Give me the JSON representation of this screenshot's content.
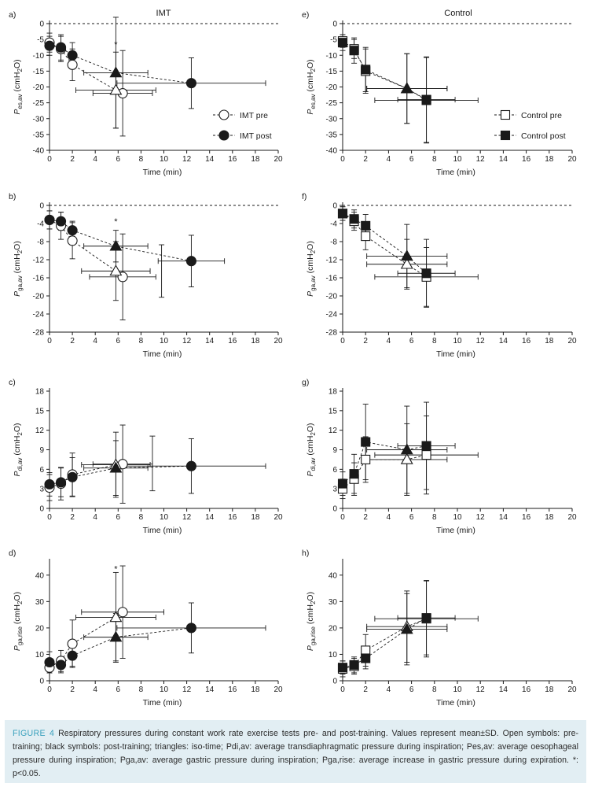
{
  "columns": {
    "left_title": "IMT",
    "right_title": "Control"
  },
  "legends": {
    "imt": [
      {
        "label": "IMT pre",
        "marker": "circle",
        "filled": false
      },
      {
        "label": "IMT post",
        "marker": "circle",
        "filled": true
      }
    ],
    "control": [
      {
        "label": "Control pre",
        "marker": "square",
        "filled": false
      },
      {
        "label": "Control post",
        "marker": "square",
        "filled": true
      }
    ]
  },
  "colors": {
    "ink": "#1a1a1a",
    "caption_bg": "#e2eef3",
    "caption_label": "#3aa1bd"
  },
  "caption": {
    "label": "FIGURE 4",
    "text": "Respiratory pressures during constant work rate exercise tests pre- and post-training. Values represent mean±SD. Open symbols: pre-training; black symbols: post-training; triangles: iso-time; Pdi,av: average transdiaphragmatic pressure during inspiration; Pes,av: average oesophageal pressure during inspiration; Pga,av: average gastric pressure during inspiration; Pga,rise: average increase in gastric pressure during expiration. *: p<0.05."
  },
  "chart_data": [
    {
      "panel": "a)",
      "type": "scatter",
      "group": "IMT",
      "xlabel": "Time (min)",
      "ylabel": "Pes,av (cmH2O)",
      "xlim": [
        0,
        20
      ],
      "ylim": [
        -40,
        0
      ],
      "xticks": [
        0,
        2,
        4,
        6,
        8,
        10,
        12,
        14,
        16,
        18,
        20
      ],
      "yticks": [
        0,
        -5,
        -10,
        -15,
        -20,
        -25,
        -30,
        -35,
        -40
      ],
      "zero_line": true,
      "series": [
        {
          "name": "IMT pre",
          "marker": "circle",
          "filled": false,
          "points": [
            {
              "x": 0,
              "y": -6,
              "yerr": 3
            },
            {
              "x": 1,
              "y": -8,
              "yerr": 4
            },
            {
              "x": 2,
              "y": -13,
              "yerr": 5
            },
            {
              "x": 6.4,
              "y": -22,
              "yerr": 13.5,
              "xerr": 2.6
            }
          ]
        },
        {
          "name": "IMT post",
          "marker": "circle",
          "filled": true,
          "points": [
            {
              "x": 0,
              "y": -7,
              "yerr": 3
            },
            {
              "x": 1,
              "y": -7.5,
              "yerr": 4
            },
            {
              "x": 2,
              "y": -10,
              "yerr": 4
            },
            {
              "x": 12.4,
              "y": -18.8,
              "yerr": 8,
              "xerr": 6.5
            }
          ]
        },
        {
          "name": "iso-time pre",
          "marker": "triangle",
          "filled": false,
          "points": [
            {
              "x": 5.8,
              "y": -21,
              "yerr": 12,
              "xerr": 3.5
            }
          ]
        },
        {
          "name": "iso-time post",
          "marker": "triangle",
          "filled": true,
          "points": [
            {
              "x": 5.8,
              "y": -15.5,
              "yerr": 17.5,
              "xerr": 2.8
            }
          ]
        }
      ],
      "annotations": [
        {
          "text": "*",
          "x": 5.8,
          "y": -6.5
        }
      ]
    },
    {
      "panel": "b)",
      "type": "scatter",
      "group": "IMT",
      "xlabel": "Time (min)",
      "ylabel": "Pga,av (cmH2O)",
      "xlim": [
        0,
        20
      ],
      "ylim": [
        -28,
        0
      ],
      "xticks": [
        0,
        2,
        4,
        6,
        8,
        10,
        12,
        14,
        16,
        18,
        20
      ],
      "yticks": [
        0,
        -4,
        -8,
        -12,
        -16,
        -20,
        -24,
        -28
      ],
      "zero_line": true,
      "series": [
        {
          "name": "IMT pre",
          "marker": "circle",
          "filled": false,
          "points": [
            {
              "x": 0,
              "y": -3.2,
              "yerr": 2
            },
            {
              "x": 1,
              "y": -4.5,
              "yerr": 3
            },
            {
              "x": 2,
              "y": -7.8,
              "yerr": 4
            },
            {
              "x": 6.4,
              "y": -15.8,
              "yerr": 9.5,
              "xerr": 2.9
            }
          ]
        },
        {
          "name": "IMT post",
          "marker": "circle",
          "filled": true,
          "points": [
            {
              "x": 0,
              "y": -3.2,
              "yerr": 2
            },
            {
              "x": 1,
              "y": -3.5,
              "yerr": 2
            },
            {
              "x": 2,
              "y": -5.5,
              "yerr": 2
            },
            {
              "x": 12.4,
              "y": -12.3,
              "yerr": 5.7,
              "xerr": 2.9
            }
          ]
        },
        {
          "name": "iso-time pre",
          "marker": "triangle",
          "filled": false,
          "points": [
            {
              "x": 5.8,
              "y": -14.5,
              "yerr": 6.5,
              "xerr": 3.0
            }
          ]
        },
        {
          "name": "iso-time post",
          "marker": "triangle",
          "filled": true,
          "points": [
            {
              "x": 5.8,
              "y": -9,
              "yerr": 3.5,
              "xerr": 2.8
            }
          ]
        }
      ],
      "annotations": [
        {
          "text": "*",
          "x": 5.8,
          "y": -3.5
        }
      ],
      "extra_errorbars": [
        {
          "x": 9.8,
          "y": -14.5,
          "yerr": 5.8
        }
      ]
    },
    {
      "panel": "c)",
      "type": "scatter",
      "group": "IMT",
      "xlabel": "Time (min)",
      "ylabel": "Pdi,av (cmH2O)",
      "xlim": [
        0,
        20
      ],
      "ylim": [
        0,
        18
      ],
      "xticks": [
        0,
        2,
        4,
        6,
        8,
        10,
        12,
        14,
        16,
        18,
        20
      ],
      "yticks": [
        0,
        3,
        6,
        9,
        12,
        15,
        18
      ],
      "zero_line": false,
      "series": [
        {
          "name": "IMT pre",
          "marker": "circle",
          "filled": false,
          "points": [
            {
              "x": 0,
              "y": 3.2,
              "yerr": 2
            },
            {
              "x": 1,
              "y": 3.8,
              "yerr": 2.5
            },
            {
              "x": 2,
              "y": 5.2,
              "yerr": 3.3
            },
            {
              "x": 6.4,
              "y": 6.8,
              "yerr": 6,
              "xerr": 2.6
            }
          ]
        },
        {
          "name": "IMT post",
          "marker": "circle",
          "filled": true,
          "points": [
            {
              "x": 0,
              "y": 3.7,
              "yerr": 1.8
            },
            {
              "x": 1,
              "y": 4.0,
              "yerr": 2.2
            },
            {
              "x": 2,
              "y": 4.8,
              "yerr": 3
            },
            {
              "x": 12.4,
              "y": 6.5,
              "yerr": 4.2,
              "xerr": 6.5
            }
          ]
        },
        {
          "name": "iso-time pre",
          "marker": "triangle",
          "filled": false,
          "points": [
            {
              "x": 5.8,
              "y": 6.7,
              "yerr": 5,
              "xerr": 3.0
            }
          ]
        },
        {
          "name": "iso-time post",
          "marker": "triangle",
          "filled": true,
          "points": [
            {
              "x": 5.8,
              "y": 6.2,
              "yerr": 4.2,
              "xerr": 2.8
            }
          ]
        }
      ],
      "annotations": [],
      "extra_errorbars": [
        {
          "x": 9.0,
          "y": 6.9,
          "yerr": 4.2
        }
      ]
    },
    {
      "panel": "d)",
      "type": "scatter",
      "group": "IMT",
      "xlabel": "Time (min)",
      "ylabel": "Pga,rise (cmH2O)",
      "xlim": [
        0,
        20
      ],
      "ylim": [
        0,
        45
      ],
      "xticks": [
        0,
        2,
        4,
        6,
        8,
        10,
        12,
        14,
        16,
        18,
        20
      ],
      "yticks": [
        0,
        10,
        20,
        30,
        40
      ],
      "zero_line": false,
      "series": [
        {
          "name": "IMT pre",
          "marker": "circle",
          "filled": false,
          "points": [
            {
              "x": 0,
              "y": 5,
              "yerr": 2
            },
            {
              "x": 1,
              "y": 7.5,
              "yerr": 4
            },
            {
              "x": 2,
              "y": 14,
              "yerr": 9
            },
            {
              "x": 6.4,
              "y": 26,
              "yerr": 17.5,
              "xerr": 3.6
            }
          ]
        },
        {
          "name": "IMT post",
          "marker": "circle",
          "filled": true,
          "points": [
            {
              "x": 0,
              "y": 7,
              "yerr": 4
            },
            {
              "x": 1,
              "y": 6,
              "yerr": 3
            },
            {
              "x": 2,
              "y": 9.5,
              "yerr": 4
            },
            {
              "x": 12.4,
              "y": 20,
              "yerr": 9.5,
              "xerr": 6.5
            }
          ]
        },
        {
          "name": "iso-time pre",
          "marker": "triangle",
          "filled": false,
          "points": [
            {
              "x": 5.8,
              "y": 24,
              "yerr": 17,
              "xerr": 3.5
            }
          ]
        },
        {
          "name": "iso-time post",
          "marker": "triangle",
          "filled": true,
          "points": [
            {
              "x": 5.8,
              "y": 16.5,
              "yerr": 9,
              "xerr": 2.8
            }
          ]
        }
      ],
      "annotations": [
        {
          "text": "*",
          "x": 5.8,
          "y": 42.5
        }
      ]
    },
    {
      "panel": "e)",
      "type": "scatter",
      "group": "Control",
      "xlabel": "Time (min)",
      "ylabel": "Pes,av (cmH2O)",
      "xlim": [
        0,
        20
      ],
      "ylim": [
        -40,
        0
      ],
      "xticks": [
        0,
        2,
        4,
        6,
        8,
        10,
        12,
        14,
        16,
        18,
        20
      ],
      "yticks": [
        0,
        -5,
        -10,
        -15,
        -20,
        -25,
        -30,
        -35,
        -40
      ],
      "zero_line": true,
      "series": [
        {
          "name": "Control pre",
          "marker": "square",
          "filled": false,
          "points": [
            {
              "x": 0,
              "y": -5.5,
              "yerr": 2
            },
            {
              "x": 1,
              "y": -8,
              "yerr": 3
            },
            {
              "x": 2,
              "y": -15,
              "yerr": 7
            },
            {
              "x": 7.3,
              "y": -24.2,
              "yerr": 13.5,
              "xerr": 4.5
            }
          ]
        },
        {
          "name": "Control post",
          "marker": "square",
          "filled": true,
          "points": [
            {
              "x": 0,
              "y": -6,
              "yerr": 2.5
            },
            {
              "x": 1,
              "y": -8.5,
              "yerr": 4
            },
            {
              "x": 2,
              "y": -14.5,
              "yerr": 7
            },
            {
              "x": 7.3,
              "y": -24,
              "yerr": 13.5,
              "xerr": 2.5
            }
          ]
        },
        {
          "name": "iso-time pre",
          "marker": "triangle",
          "filled": false,
          "points": [
            {
              "x": 5.6,
              "y": -20.5,
              "yerr": 11,
              "xerr": 3.5
            }
          ]
        },
        {
          "name": "iso-time post",
          "marker": "triangle",
          "filled": true,
          "points": [
            {
              "x": 5.6,
              "y": -20.5,
              "yerr": 11,
              "xerr": 3.5
            }
          ]
        }
      ],
      "annotations": []
    },
    {
      "panel": "f)",
      "type": "scatter",
      "group": "Control",
      "xlabel": "Time (min)",
      "ylabel": "Pga,av (cmH2O)",
      "xlim": [
        0,
        20
      ],
      "ylim": [
        -28,
        0
      ],
      "xticks": [
        0,
        2,
        4,
        6,
        8,
        10,
        12,
        14,
        16,
        18,
        20
      ],
      "yticks": [
        0,
        -4,
        -8,
        -12,
        -16,
        -20,
        -24,
        -28
      ],
      "zero_line": true,
      "series": [
        {
          "name": "Control pre",
          "marker": "square",
          "filled": false,
          "points": [
            {
              "x": 0,
              "y": -1.8,
              "yerr": 1.5
            },
            {
              "x": 1,
              "y": -3.5,
              "yerr": 2
            },
            {
              "x": 2,
              "y": -6.8,
              "yerr": 3
            },
            {
              "x": 7.3,
              "y": -15.8,
              "yerr": 6.5,
              "xerr": 4.5
            }
          ]
        },
        {
          "name": "Control post",
          "marker": "square",
          "filled": true,
          "points": [
            {
              "x": 0,
              "y": -1.8,
              "yerr": 1.5
            },
            {
              "x": 1,
              "y": -3,
              "yerr": 2
            },
            {
              "x": 2,
              "y": -4.5,
              "yerr": 2.5
            },
            {
              "x": 7.3,
              "y": -15,
              "yerr": 7.5,
              "xerr": 2.5
            }
          ]
        },
        {
          "name": "iso-time pre",
          "marker": "triangle",
          "filled": false,
          "points": [
            {
              "x": 5.6,
              "y": -13,
              "yerr": 5.5,
              "xerr": 3.5
            }
          ]
        },
        {
          "name": "iso-time post",
          "marker": "triangle",
          "filled": true,
          "points": [
            {
              "x": 5.6,
              "y": -11.2,
              "yerr": 7,
              "xerr": 3.5
            }
          ]
        }
      ],
      "annotations": []
    },
    {
      "panel": "g)",
      "type": "scatter",
      "group": "Control",
      "xlabel": "Time (min)",
      "ylabel": "Pdi,av (cmH2O)",
      "xlim": [
        0,
        20
      ],
      "ylim": [
        0,
        18
      ],
      "xticks": [
        0,
        2,
        4,
        6,
        8,
        10,
        12,
        14,
        16,
        18,
        20
      ],
      "yticks": [
        0,
        3,
        6,
        9,
        12,
        15,
        18
      ],
      "zero_line": false,
      "series": [
        {
          "name": "Control pre",
          "marker": "square",
          "filled": false,
          "points": [
            {
              "x": 0,
              "y": 3,
              "yerr": 1.5
            },
            {
              "x": 1,
              "y": 4.5,
              "yerr": 2.5
            },
            {
              "x": 2,
              "y": 7.5,
              "yerr": 3.5
            },
            {
              "x": 7.3,
              "y": 8.2,
              "yerr": 6,
              "xerr": 4.5
            }
          ]
        },
        {
          "name": "Control post",
          "marker": "square",
          "filled": true,
          "points": [
            {
              "x": 0,
              "y": 3.8,
              "yerr": 1.8
            },
            {
              "x": 1,
              "y": 5.3,
              "yerr": 3
            },
            {
              "x": 2,
              "y": 10.2,
              "yerr": 5.8
            },
            {
              "x": 7.3,
              "y": 9.6,
              "yerr": 6.7,
              "xerr": 2.5
            }
          ]
        },
        {
          "name": "iso-time pre",
          "marker": "triangle",
          "filled": false,
          "points": [
            {
              "x": 5.6,
              "y": 7.5,
              "yerr": 5.5,
              "xerr": 3.5
            }
          ]
        },
        {
          "name": "iso-time post",
          "marker": "triangle",
          "filled": true,
          "points": [
            {
              "x": 5.6,
              "y": 9.0,
              "yerr": 6.7,
              "xerr": 3.5
            }
          ]
        }
      ],
      "annotations": []
    },
    {
      "panel": "h)",
      "type": "scatter",
      "group": "Control",
      "xlabel": "Time (min)",
      "ylabel": "Pga,rise (cmH2O)",
      "xlim": [
        0,
        20
      ],
      "ylim": [
        0,
        45
      ],
      "xticks": [
        0,
        2,
        4,
        6,
        8,
        10,
        12,
        14,
        16,
        18,
        20
      ],
      "yticks": [
        0,
        10,
        20,
        30,
        40
      ],
      "zero_line": false,
      "series": [
        {
          "name": "Control pre",
          "marker": "square",
          "filled": false,
          "points": [
            {
              "x": 0,
              "y": 4.5,
              "yerr": 3
            },
            {
              "x": 1,
              "y": 5.5,
              "yerr": 3
            },
            {
              "x": 2,
              "y": 11.5,
              "yerr": 6
            },
            {
              "x": 7.3,
              "y": 23.5,
              "yerr": 14.5,
              "xerr": 4.5
            }
          ]
        },
        {
          "name": "Control post",
          "marker": "square",
          "filled": true,
          "points": [
            {
              "x": 0,
              "y": 5,
              "yerr": 2.5
            },
            {
              "x": 1,
              "y": 6,
              "yerr": 3
            },
            {
              "x": 2,
              "y": 8.5,
              "yerr": 4
            },
            {
              "x": 7.3,
              "y": 23.8,
              "yerr": 14,
              "xerr": 2.5
            }
          ]
        },
        {
          "name": "iso-time pre",
          "marker": "triangle",
          "filled": false,
          "points": [
            {
              "x": 5.6,
              "y": 20.5,
              "yerr": 13.5,
              "xerr": 3.5
            }
          ]
        },
        {
          "name": "iso-time post",
          "marker": "triangle",
          "filled": true,
          "points": [
            {
              "x": 5.6,
              "y": 19.5,
              "yerr": 13.5,
              "xerr": 3.5
            }
          ]
        }
      ],
      "annotations": []
    }
  ]
}
